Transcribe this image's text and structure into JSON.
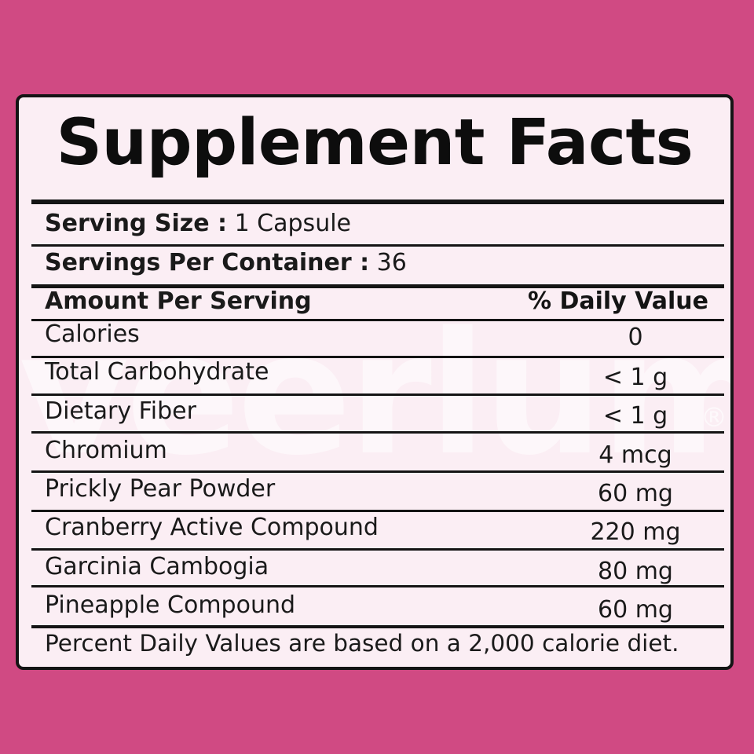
{
  "colors": {
    "background": "#d04a83",
    "panel": "#fbeef4",
    "border": "#141414",
    "text": "#1a1a1a"
  },
  "watermark": "veerlum",
  "watermark_mark": "®",
  "title": "Supplement Facts",
  "serving_size": {
    "label": "Serving Size :",
    "value": "1 Capsule"
  },
  "servings_per_container": {
    "label": "Servings Per Container :",
    "value": "36"
  },
  "header": {
    "left": "Amount Per Serving",
    "right": "% Daily Value"
  },
  "nutrients": [
    {
      "name": "Calories",
      "amount": "0"
    },
    {
      "name": "Total Carbohydrate",
      "amount": "< 1 g"
    },
    {
      "name": "Dietary Fiber",
      "amount": "< 1 g"
    },
    {
      "name": "Chromium",
      "amount": "4 mcg"
    },
    {
      "name": "Prickly Pear Powder",
      "amount": "60 mg"
    },
    {
      "name": "Cranberry Active Compound",
      "amount": "220 mg"
    },
    {
      "name": "Garcinia Cambogia",
      "amount": "80 mg"
    },
    {
      "name": "Pineapple Compound",
      "amount": "60 mg"
    }
  ],
  "footnote": "Percent Daily Values are based on a 2,000 calorie diet."
}
